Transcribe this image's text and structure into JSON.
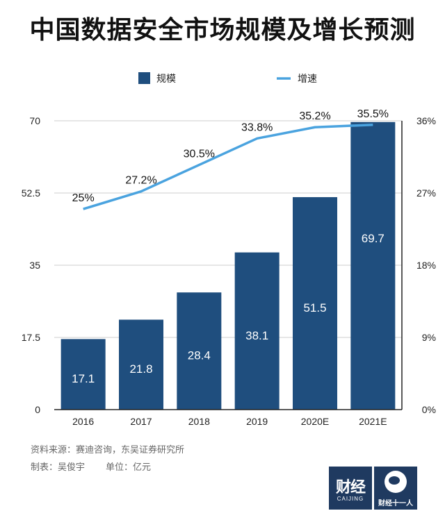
{
  "title": "中国数据安全市场规模及增长预测",
  "chart_data": {
    "type": "bar",
    "categories": [
      "2016",
      "2017",
      "2018",
      "2019",
      "2020E",
      "2021E"
    ],
    "series": [
      {
        "name": "规模",
        "type": "bar",
        "axis": "left",
        "values": [
          17.1,
          21.8,
          28.4,
          38.1,
          51.5,
          69.7
        ],
        "labels": [
          "17.1",
          "21.8",
          "28.4",
          "38.1",
          "51.5",
          "69.7"
        ]
      },
      {
        "name": "增速",
        "type": "line",
        "axis": "right",
        "values": [
          25.0,
          27.2,
          30.5,
          33.8,
          35.2,
          35.5
        ],
        "labels": [
          "25%",
          "27.2%",
          "30.5%",
          "33.8%",
          "35.2%",
          "35.5%"
        ]
      }
    ],
    "y_left": {
      "min": 0,
      "max": 70,
      "ticks": [
        "0",
        "17.5",
        "35",
        "52.5",
        "70"
      ]
    },
    "y_right": {
      "min": 0,
      "max": 36,
      "ticks": [
        "0%",
        "9%",
        "18%",
        "27%",
        "36%"
      ]
    },
    "legend_position": "top-center",
    "grid": true,
    "colors": {
      "bar": "#1f4e7e",
      "line": "#4aa3df",
      "grid": "#cccccc",
      "axis": "#222222"
    }
  },
  "source": {
    "line1": "资料来源：赛迪咨询，东吴证券研究所",
    "maker": "制表：吴俊宇",
    "unit": "单位：亿元"
  },
  "logos": {
    "logo1_big": "财经",
    "logo1_small": "CAIJING",
    "logo2_text": "财经十一人"
  }
}
